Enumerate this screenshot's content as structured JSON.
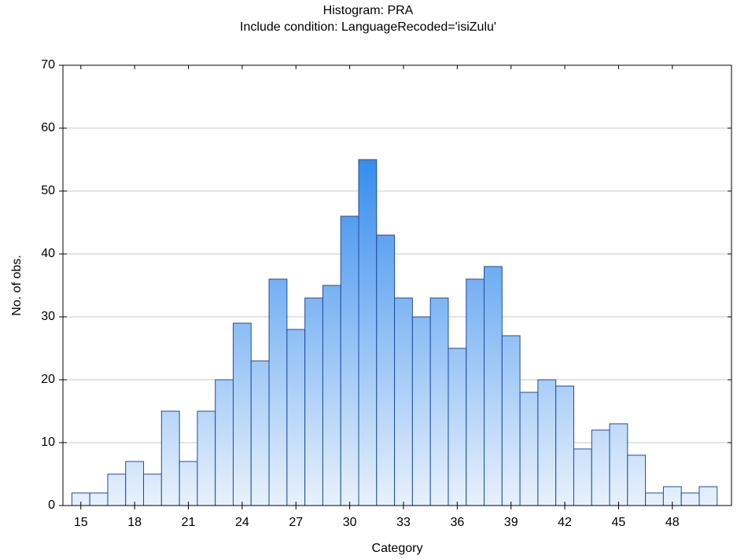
{
  "chart_data": {
    "type": "histogram",
    "title": "Histogram: PRA",
    "subtitle": "Include condition: LanguageRecoded='isiZulu'",
    "x_label": "Category",
    "y_label": "No. of obs.",
    "bins": [
      14.5,
      15.5,
      16.5,
      17.5,
      18.5,
      19.5,
      20.5,
      21.5,
      22.5,
      23.5,
      24.5,
      25.5,
      26.5,
      27.5,
      28.5,
      29.5,
      30.5,
      31.5,
      32.5,
      33.5,
      34.5,
      35.5,
      36.5,
      37.5,
      38.5,
      39.5,
      40.5,
      41.5,
      42.5,
      43.5,
      44.5,
      45.5,
      46.5,
      47.5,
      48.5,
      49.5,
      50.5
    ],
    "values": [
      2,
      2,
      5,
      7,
      5,
      15,
      7,
      15,
      20,
      29,
      23,
      36,
      28,
      33,
      35,
      46,
      55,
      43,
      33,
      30,
      33,
      25,
      36,
      38,
      27,
      18,
      20,
      19,
      9,
      12,
      13,
      8,
      2,
      3,
      2,
      3
    ],
    "color": "#2f88ee",
    "edge_color": "#1f4e9c",
    "xlim": [
      14,
      51.3
    ],
    "xticks": [
      15,
      18,
      21,
      24,
      27,
      30,
      33,
      36,
      39,
      42,
      45,
      48
    ],
    "ylim": [
      0,
      70
    ],
    "yticks": [
      0,
      10,
      20,
      30,
      40,
      50,
      60,
      70
    ],
    "grid": true
  }
}
